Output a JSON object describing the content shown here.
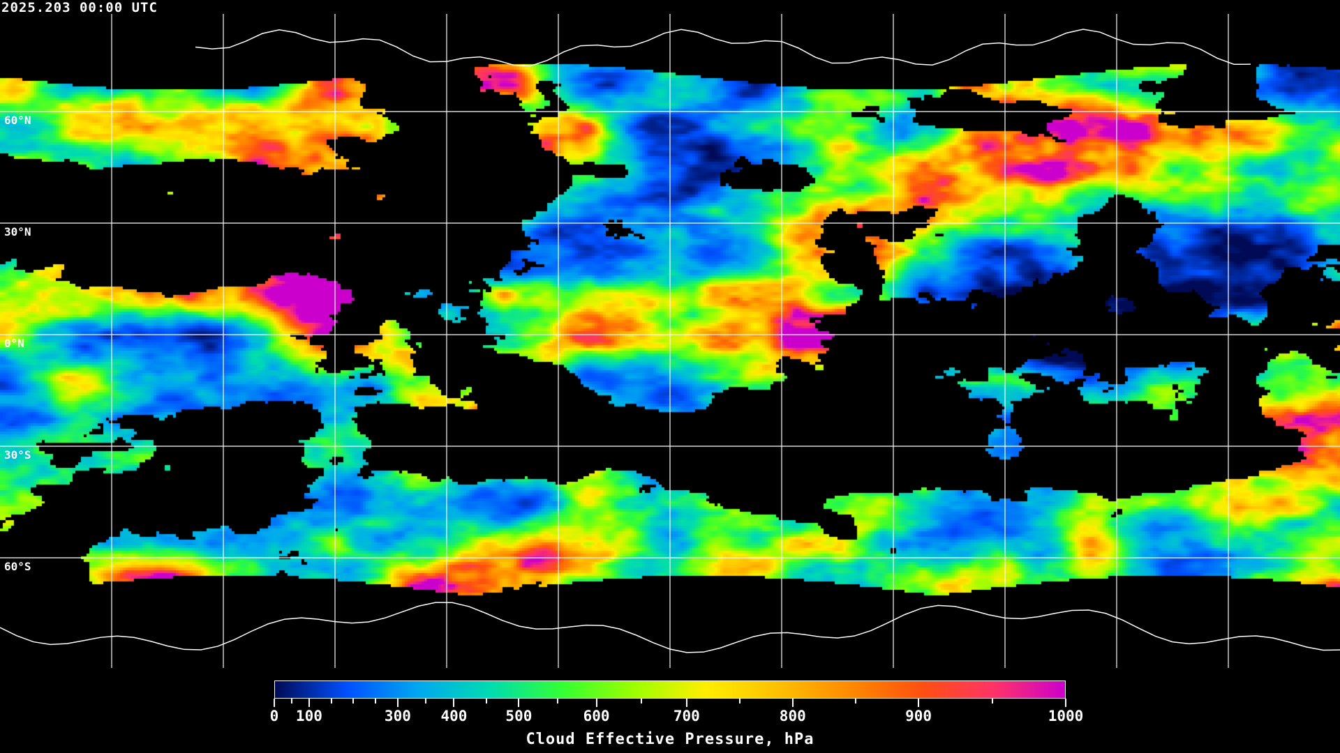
{
  "header": {
    "timestamp": "2025.203 00:00 UTC"
  },
  "map": {
    "projection": "equirectangular",
    "grid_spacing_deg": 30,
    "lat_labels": [
      "60°N",
      "30°N",
      "0°N",
      "30°S",
      "60°S"
    ],
    "background": "#000000",
    "grid_color": "#ffffff",
    "coastline_color": "#ffffff"
  },
  "colorbar": {
    "title": "Cloud Effective Pressure, hPa",
    "range": [
      0,
      1000
    ],
    "tick_labels": [
      "0",
      "100",
      "300",
      "400",
      "500",
      "600",
      "700",
      "800",
      "900",
      "1000"
    ],
    "tick_values": [
      0,
      100,
      300,
      400,
      500,
      600,
      700,
      800,
      900,
      1000
    ],
    "colors": [
      "#000a55",
      "#0050ff",
      "#00a8f0",
      "#00dcb0",
      "#33ff33",
      "#9cff00",
      "#ffee00",
      "#ffc000",
      "#ff8a00",
      "#ff5010",
      "#ff3366",
      "#cc00cc"
    ]
  }
}
